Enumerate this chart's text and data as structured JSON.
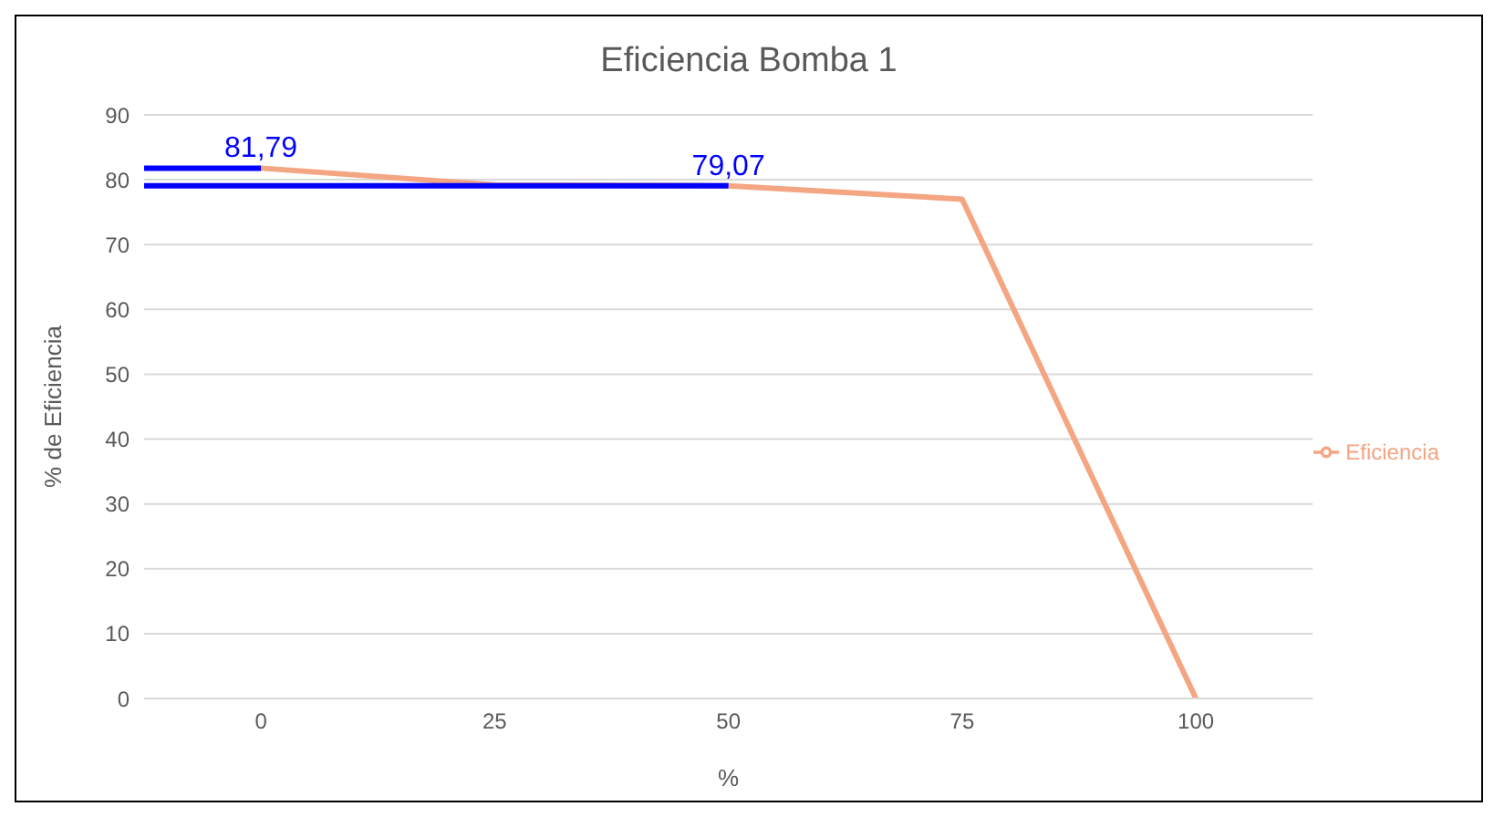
{
  "chart_data": {
    "type": "line",
    "title": "Eficiencia Bomba 1",
    "xlabel": "%",
    "ylabel": "% de Eficiencia",
    "xlim": [
      -12.5,
      112.5
    ],
    "xticks": [
      0,
      25,
      50,
      75,
      100
    ],
    "ylim": [
      0,
      90
    ],
    "yticks": [
      0,
      10,
      20,
      30,
      40,
      50,
      60,
      70,
      80,
      90
    ],
    "series": [
      {
        "name": "Eficiencia",
        "color": "#f4a582",
        "x": [
          0,
          25,
          50,
          75,
          100
        ],
        "values": [
          81.79,
          79.2,
          79.07,
          77,
          0
        ]
      },
      {
        "color": "#0000ff",
        "x": [
          -12.5,
          0
        ],
        "values": [
          81.79,
          81.79
        ]
      },
      {
        "color": "#0000ff",
        "x": [
          -12.5,
          50
        ],
        "values": [
          79.07,
          79.07
        ]
      }
    ],
    "annotations": [
      {
        "text": "81,79",
        "x": 0,
        "y": 81.79
      },
      {
        "text": "79,07",
        "x": 50,
        "y": 79.07
      }
    ],
    "grid": "y",
    "legend": "right",
    "marker": "none"
  }
}
